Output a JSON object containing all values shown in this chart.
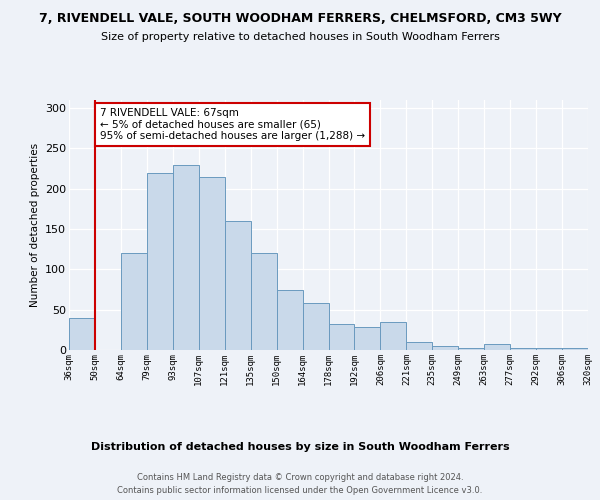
{
  "title": "7, RIVENDELL VALE, SOUTH WOODHAM FERRERS, CHELMSFORD, CM3 5WY",
  "subtitle": "Size of property relative to detached houses in South Woodham Ferrers",
  "xlabel": "Distribution of detached houses by size in South Woodham Ferrers",
  "ylabel": "Number of detached properties",
  "bins": [
    "36sqm",
    "50sqm",
    "64sqm",
    "79sqm",
    "93sqm",
    "107sqm",
    "121sqm",
    "135sqm",
    "150sqm",
    "164sqm",
    "178sqm",
    "192sqm",
    "206sqm",
    "221sqm",
    "235sqm",
    "249sqm",
    "263sqm",
    "277sqm",
    "292sqm",
    "306sqm",
    "320sqm"
  ],
  "values": [
    40,
    0,
    120,
    220,
    230,
    215,
    160,
    120,
    75,
    58,
    32,
    28,
    35,
    10,
    5,
    3,
    8,
    3,
    3,
    3,
    3
  ],
  "bar_color": "#c9d9ea",
  "bar_edge_color": "#6a9abf",
  "marker_label": "7 RIVENDELL VALE: 67sqm",
  "annotation_line1": "← 5% of detached houses are smaller (65)",
  "annotation_line2": "95% of semi-detached houses are larger (1,288) →",
  "vline_color": "#cc0000",
  "vline_x": 1,
  "footer1": "Contains HM Land Registry data © Crown copyright and database right 2024.",
  "footer2": "Contains public sector information licensed under the Open Government Licence v3.0.",
  "bg_color": "#eef2f8",
  "ylim": [
    0,
    310
  ],
  "yticks": [
    0,
    50,
    100,
    150,
    200,
    250,
    300
  ]
}
